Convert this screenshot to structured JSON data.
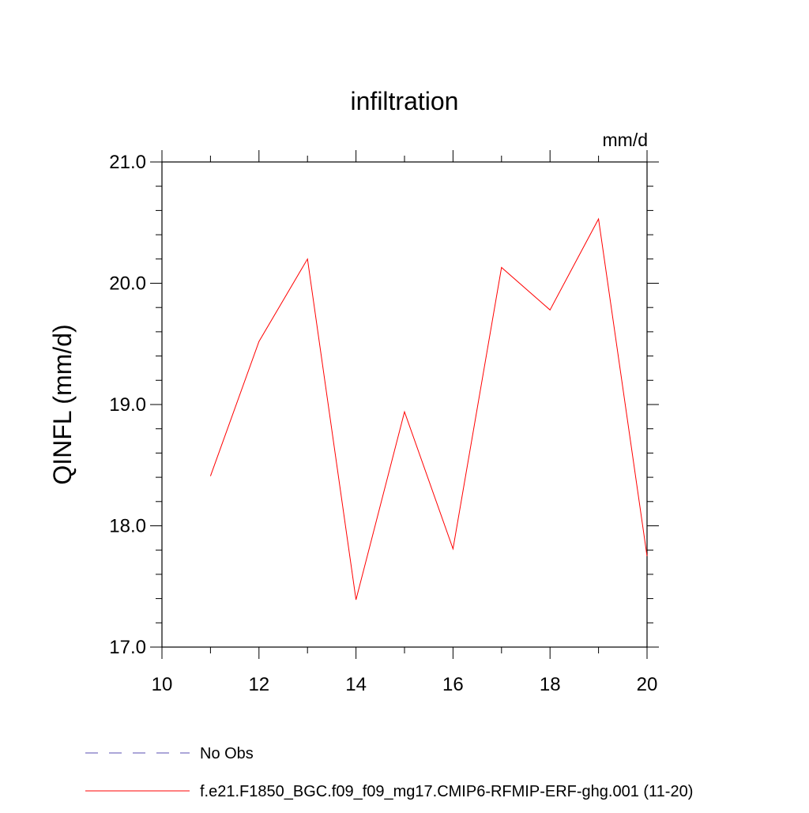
{
  "chart_data": {
    "type": "line",
    "title": "infiltration",
    "units_label": "mm/d",
    "ylabel": "QINFL  (mm/d)",
    "xlabel": "",
    "xlim": [
      10,
      20
    ],
    "ylim": [
      17.0,
      21.0
    ],
    "x_ticks": [
      10,
      12,
      14,
      16,
      18,
      20
    ],
    "x_tick_labels": [
      "10",
      "12",
      "14",
      "16",
      "18",
      "20"
    ],
    "y_ticks": [
      17.0,
      18.0,
      19.0,
      20.0,
      21.0
    ],
    "y_tick_labels": [
      "17.0",
      "18.0",
      "19.0",
      "20.0",
      "21.0"
    ],
    "grid": false,
    "legend_position": "bottom",
    "series": [
      {
        "name": "f.e21.F1850_BGC.f09_f09_mg17.CMIP6-RFMIP-ERF-ghg.001 (11-20)",
        "color": "#ff0000",
        "style": "solid",
        "x": [
          11,
          12,
          13,
          14,
          15,
          16,
          17,
          18,
          19,
          20
        ],
        "y": [
          18.41,
          19.52,
          20.2,
          17.39,
          18.94,
          17.81,
          20.13,
          19.78,
          20.53,
          17.75
        ]
      }
    ],
    "legend": [
      {
        "label": "No Obs",
        "color": "#5a4fb0",
        "style": "dashed"
      },
      {
        "label": "f.e21.F1850_BGC.f09_f09_mg17.CMIP6-RFMIP-ERF-ghg.001 (11-20)",
        "color": "#ff0000",
        "style": "solid"
      }
    ]
  }
}
